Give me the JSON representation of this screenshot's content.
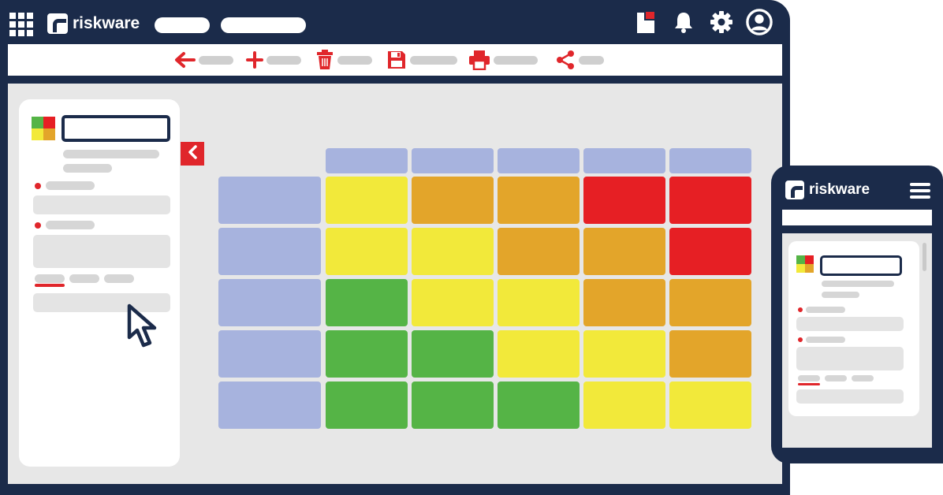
{
  "desktop": {
    "brand": "riskware",
    "topbar_icons": [
      "grid-icon",
      "notification-card-icon",
      "bell-icon",
      "gear-icon",
      "user-avatar-icon"
    ],
    "toolbar": {
      "actions": [
        {
          "name": "back",
          "icon": "arrow-left-icon"
        },
        {
          "name": "add",
          "icon": "plus-icon"
        },
        {
          "name": "delete",
          "icon": "trash-icon"
        },
        {
          "name": "save",
          "icon": "floppy-disk-icon"
        },
        {
          "name": "print",
          "icon": "printer-icon"
        },
        {
          "name": "share",
          "icon": "share-icon"
        }
      ]
    },
    "sidebar": {
      "collapse_icon": "chevron-left-icon"
    }
  },
  "mobile": {
    "brand": "riskware",
    "menu_icon": "hamburger-menu-icon"
  },
  "risk_matrix": {
    "cells": [
      [
        "yellow",
        "orange",
        "orange",
        "red",
        "red"
      ],
      [
        "yellow",
        "yellow",
        "orange",
        "orange",
        "red"
      ],
      [
        "green",
        "yellow",
        "yellow",
        "orange",
        "orange"
      ],
      [
        "green",
        "green",
        "yellow",
        "yellow",
        "orange"
      ],
      [
        "green",
        "green",
        "green",
        "yellow",
        "yellow"
      ]
    ]
  },
  "colors": {
    "navy": "#1b2b4a",
    "accent_red": "#e0262b",
    "header_blue": "#a7b3de",
    "red": "#e61f24",
    "orange": "#e3a52a",
    "yellow": "#f2e93a",
    "green": "#55b446"
  }
}
